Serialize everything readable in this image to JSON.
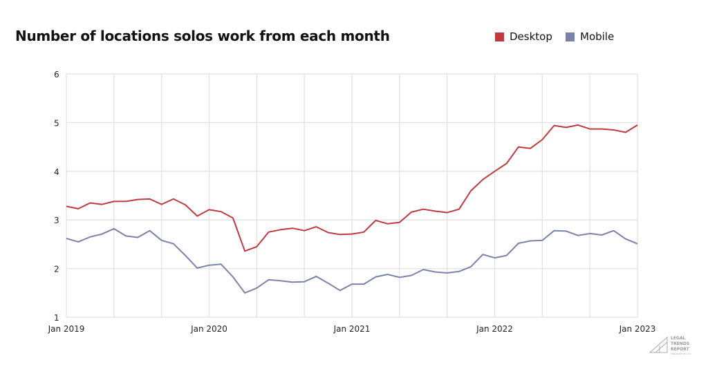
{
  "chart_data": {
    "type": "line",
    "title": "Number of locations solos work from each month",
    "x_start": "Jan 2019",
    "x_end": "Jan 2023",
    "x_interval": "month",
    "x_tick_labels": [
      "Jan 2019",
      "Jan 2020",
      "Jan 2021",
      "Jan 2022",
      "Jan 2023"
    ],
    "y_ticks": [
      1,
      2,
      3,
      4,
      5,
      6
    ],
    "ylim": [
      1,
      6
    ],
    "grid": true,
    "legend_position": "top-right",
    "series": [
      {
        "name": "Desktop",
        "color": "#c0393f",
        "values": [
          3.28,
          3.23,
          3.35,
          3.32,
          3.38,
          3.38,
          3.42,
          3.43,
          3.32,
          3.43,
          3.31,
          3.08,
          3.21,
          3.17,
          3.04,
          2.36,
          2.45,
          2.75,
          2.8,
          2.83,
          2.78,
          2.86,
          2.74,
          2.7,
          2.71,
          2.75,
          2.99,
          2.92,
          2.95,
          3.16,
          3.22,
          3.18,
          3.15,
          3.22,
          3.6,
          3.83,
          4.0,
          4.16,
          4.5,
          4.47,
          4.65,
          4.94,
          4.9,
          4.95,
          4.87,
          4.87,
          4.85,
          4.8,
          4.95
        ]
      },
      {
        "name": "Mobile",
        "color": "#7a82ab",
        "values": [
          2.62,
          2.55,
          2.65,
          2.71,
          2.82,
          2.67,
          2.64,
          2.78,
          2.58,
          2.51,
          2.27,
          2.01,
          2.07,
          2.09,
          1.83,
          1.5,
          1.6,
          1.77,
          1.75,
          1.72,
          1.73,
          1.84,
          1.7,
          1.55,
          1.68,
          1.68,
          1.83,
          1.88,
          1.82,
          1.86,
          1.98,
          1.93,
          1.91,
          1.94,
          2.04,
          2.29,
          2.22,
          2.27,
          2.52,
          2.57,
          2.58,
          2.78,
          2.77,
          2.68,
          2.72,
          2.69,
          2.78,
          2.61,
          2.51
        ]
      }
    ]
  },
  "logo": {
    "text": "LEGAL TRENDS REPORT",
    "sub": "PUBLISHED BY CLIO"
  }
}
